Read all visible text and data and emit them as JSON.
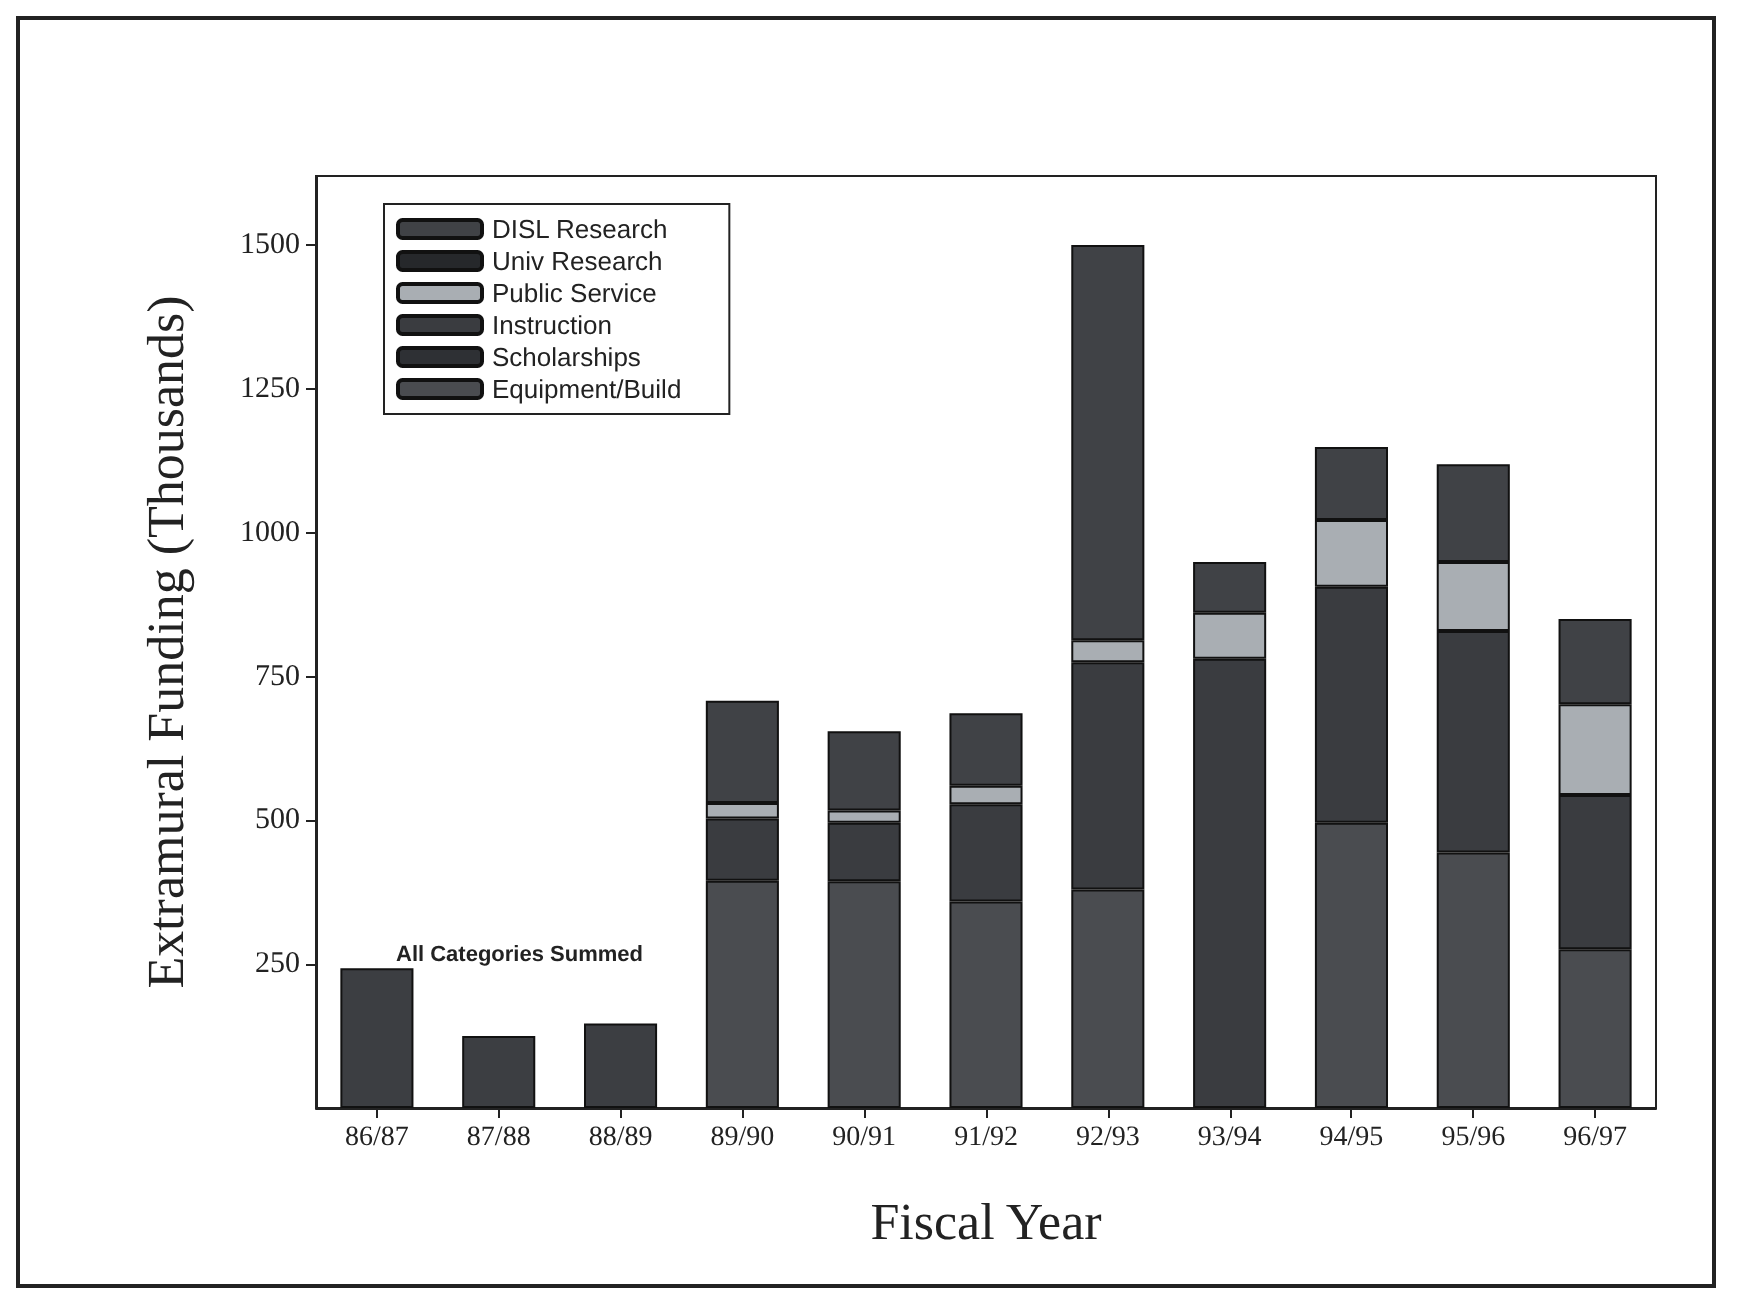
{
  "chart_data": {
    "type": "bar",
    "stacked": true,
    "xlabel": "Fiscal Year",
    "ylabel": "Extramural Funding (Thousands)",
    "categories": [
      "86/87",
      "87/88",
      "88/89",
      "89/90",
      "90/91",
      "91/92",
      "92/93",
      "93/94",
      "94/95",
      "95/96",
      "96/97"
    ],
    "series": [
      {
        "color": "#3c3e42",
        "values": [
          243,
          125,
          147,
          null,
          null,
          null,
          null,
          null,
          null,
          null,
          null
        ]
      },
      {
        "name": "Equipment/Build",
        "color": "#4a4c50",
        "values": [
          null,
          null,
          null,
          395,
          394,
          359,
          380,
          null,
          496,
          444,
          276
        ]
      },
      {
        "name": "Scholarships",
        "color": "#2e3034",
        "values": [
          null,
          null,
          null,
          null,
          null,
          null,
          null,
          null,
          null,
          null,
          null
        ]
      },
      {
        "name": "Instruction",
        "color": "#3a3c40",
        "values": [
          null,
          null,
          null,
          108,
          102,
          169,
          395,
          781,
          410,
          385,
          268
        ]
      },
      {
        "name": "Public Service",
        "color": "#a9aeb3",
        "values": [
          null,
          null,
          null,
          27,
          21,
          32,
          38,
          80,
          116,
          120,
          158
        ]
      },
      {
        "name": "Univ Research",
        "color": "#26282b",
        "values": [
          null,
          null,
          null,
          null,
          null,
          null,
          null,
          null,
          null,
          null,
          null
        ]
      },
      {
        "name": "DISL Research",
        "color": "#404246",
        "values": [
          null,
          null,
          null,
          178,
          138,
          126,
          687,
          88,
          127,
          170,
          148
        ]
      }
    ],
    "annotations": [
      "All Categories Summed"
    ],
    "ylim": [
      0,
      1620
    ],
    "yticks": [
      250,
      500,
      750,
      1000,
      1250,
      1500
    ],
    "grid": false,
    "legend": "top left"
  }
}
